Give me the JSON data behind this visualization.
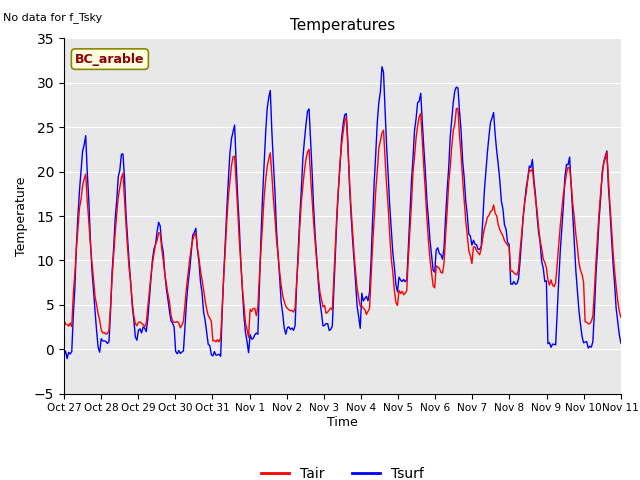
{
  "title": "Temperatures",
  "xlabel": "Time",
  "ylabel": "Temperature",
  "no_data_text": "No data for f_Tsky",
  "site_label": "BC_arable",
  "ylim": [
    -5,
    35
  ],
  "yticks": [
    -5,
    0,
    5,
    10,
    15,
    20,
    25,
    30,
    35
  ],
  "xtick_labels": [
    "Oct 27",
    "Oct 28",
    "Oct 29",
    "Oct 30",
    "Oct 31",
    "Nov 1",
    "Nov 2",
    "Nov 3",
    "Nov 4",
    "Nov 5",
    "Nov 6",
    "Nov 7",
    "Nov 8",
    "Nov 9",
    "Nov 10",
    "Nov 11"
  ],
  "background_color": "#e8e8e8",
  "line_color_tair": "red",
  "line_color_tsurf": "blue",
  "tair_label": "Tair",
  "tsurf_label": "Tsurf",
  "figsize": [
    6.4,
    4.8
  ],
  "dpi": 100
}
